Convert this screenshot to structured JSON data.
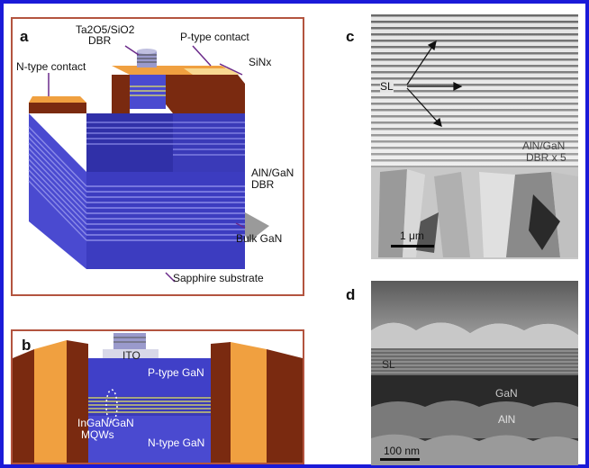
{
  "panels": {
    "a": {
      "letter": "a",
      "labels": {
        "dbr_material": "Ta2O5/SiO2",
        "dbr_word": "DBR",
        "p_contact": "P-type contact",
        "n_contact": "N-type contact",
        "sinx": "SiNx",
        "aln_gan": "AlN/GaN",
        "aln_dbr": "DBR",
        "bulk_gan": "Bulk GaN",
        "substrate": "Sapphire substrate"
      }
    },
    "b": {
      "letter": "b",
      "labels": {
        "ito": "ITO",
        "p_gan": "P-type GaN",
        "n_gan": "N-type GaN",
        "ingan": "InGaN/GaN",
        "mqws": "MQWs"
      }
    },
    "c": {
      "letter": "c",
      "labels": {
        "sl": "SL",
        "aln_gan": "AlN/GaN",
        "dbr_x": "DBR x 5",
        "scale": "1 μm"
      }
    },
    "d": {
      "letter": "d",
      "labels": {
        "sl": "SL",
        "gan": "GaN",
        "aln": "AlN",
        "scale": "100 nm"
      }
    }
  },
  "colors": {
    "frame": "#1a1ad8",
    "panel_border": "#b3543f",
    "layer_blue": "#4040c8",
    "layer_dark_blue": "#2a2aa0",
    "contact_brown": "#7a2a10",
    "contact_orange": "#f0a040",
    "sinx_cream": "#f8d890"
  }
}
